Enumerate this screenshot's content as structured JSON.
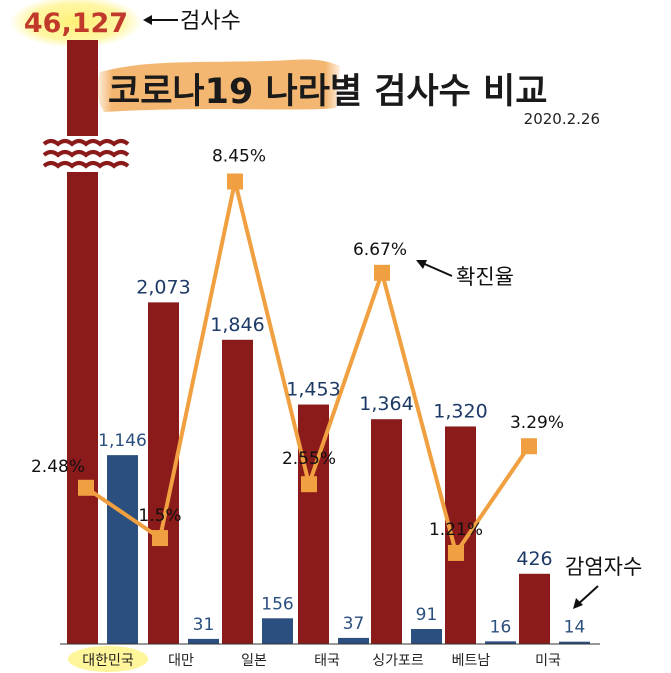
{
  "chart_data": {
    "type": "bar",
    "title": "코로나19 나라별 검사수 비교",
    "subtitle": "2020.2.26",
    "categories": [
      "대한민국",
      "대만",
      "일본",
      "태국",
      "싱가포르",
      "베트남",
      "미국"
    ],
    "series": [
      {
        "name": "검사수",
        "color": "#8b1a1a",
        "values": [
          46127,
          2073,
          1846,
          1453,
          1364,
          1320,
          426
        ],
        "labels": [
          "46,127",
          "2,073",
          "1,846",
          "1,453",
          "1,364",
          "1,320",
          "426"
        ]
      },
      {
        "name": "감염자수",
        "color": "#2b4f7e",
        "values": [
          1146,
          31,
          156,
          37,
          91,
          16,
          14
        ],
        "labels": [
          "1,146",
          "31",
          "156",
          "37",
          "91",
          "16",
          "14"
        ]
      },
      {
        "name": "확진율",
        "type": "line",
        "color": "#f0a040",
        "values": [
          2.48,
          1.5,
          8.45,
          2.55,
          6.67,
          1.21,
          3.29
        ],
        "labels": [
          "2.48%",
          "1.5%",
          "8.45%",
          "2.55%",
          "6.67%",
          "1.21%",
          "3.29%"
        ]
      }
    ],
    "ylim": [
      0,
      2600
    ],
    "axis_break": true,
    "annotations": {
      "tests": "검사수",
      "positive_rate": "확진율",
      "infected": "감염자수"
    },
    "highlight_category": "대한민국"
  },
  "colors": {
    "tests": "#8b1a1a",
    "infected": "#2b4f7e",
    "rate": "#f0a040",
    "highlight": "#fff59a",
    "title_brush": "#f3b36a",
    "axis": "#333333"
  }
}
